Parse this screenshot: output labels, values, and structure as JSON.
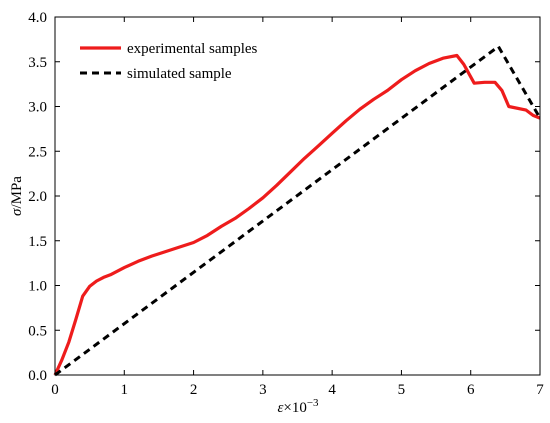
{
  "chart_data": {
    "type": "line",
    "xlabel_symbol": "ε",
    "xlabel_rest": "×10",
    "xlabel_exp": "−3",
    "ylabel_symbol": "σ",
    "ylabel_rest": "/MPa",
    "xlim": [
      0,
      7
    ],
    "ylim": [
      0,
      4.0
    ],
    "xticks": [
      0,
      1,
      2,
      3,
      4,
      5,
      6,
      7
    ],
    "xtick_labels": [
      "0",
      "1",
      "2",
      "3",
      "4",
      "5",
      "6",
      "7"
    ],
    "yticks": [
      0,
      0.5,
      1.0,
      1.5,
      2.0,
      2.5,
      3.0,
      3.5,
      4.0
    ],
    "ytick_labels": [
      "0.0",
      "0.5",
      "1.0",
      "1.5",
      "2.0",
      "2.5",
      "3.0",
      "3.5",
      "4.0"
    ],
    "grid": false,
    "legend_position": "top-left",
    "series": [
      {
        "name": "experimental samples",
        "color": "#ee1c1c",
        "style": "solid",
        "x": [
          0,
          0.1,
          0.2,
          0.3,
          0.4,
          0.5,
          0.6,
          0.7,
          0.8,
          1.0,
          1.2,
          1.4,
          1.6,
          1.8,
          2.0,
          2.2,
          2.4,
          2.6,
          2.8,
          3.0,
          3.2,
          3.4,
          3.6,
          3.8,
          4.0,
          4.2,
          4.4,
          4.6,
          4.8,
          5.0,
          5.2,
          5.4,
          5.6,
          5.8,
          5.9,
          6.05,
          6.2,
          6.35,
          6.45,
          6.55,
          6.8,
          6.9,
          7.0
        ],
        "y": [
          0,
          0.17,
          0.37,
          0.62,
          0.88,
          0.99,
          1.05,
          1.09,
          1.12,
          1.2,
          1.27,
          1.33,
          1.38,
          1.43,
          1.48,
          1.56,
          1.66,
          1.75,
          1.86,
          1.98,
          2.12,
          2.27,
          2.42,
          2.56,
          2.7,
          2.84,
          2.97,
          3.08,
          3.18,
          3.3,
          3.4,
          3.48,
          3.54,
          3.57,
          3.47,
          3.26,
          3.27,
          3.27,
          3.18,
          3.0,
          2.96,
          2.9,
          2.87
        ]
      },
      {
        "name": "simulated sample",
        "color": "#000000",
        "style": "dashed",
        "x": [
          0,
          6.4,
          7.0
        ],
        "y": [
          0,
          3.67,
          2.87
        ]
      }
    ]
  }
}
